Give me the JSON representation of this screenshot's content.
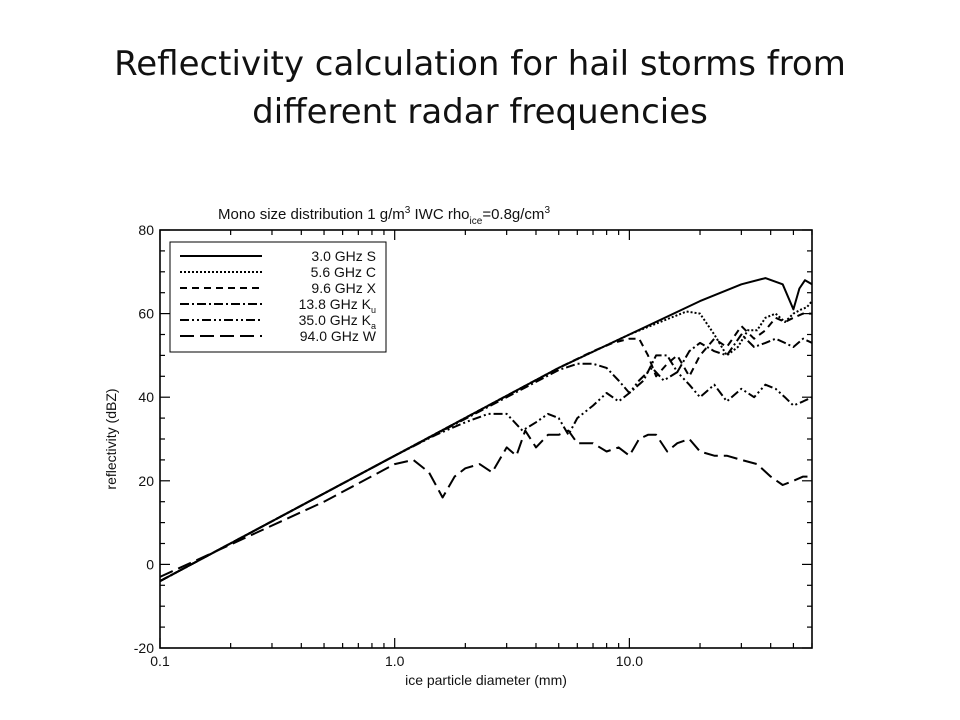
{
  "slide": {
    "title_line1": "Reflectivity calculation for hail storms from",
    "title_line2": "different radar frequencies"
  },
  "chart_data": {
    "type": "line",
    "title_parts": {
      "a": "Mono size distribution    1 g/m",
      "sup3a": "3",
      "b": " IWC    rho",
      "sub_ice": "ice",
      "c": "=0.8g/cm",
      "sup3b": "3"
    },
    "xlabel": "ice particle diameter (mm)",
    "ylabel": "reflectivity (dBZ)",
    "x_scale": "log",
    "xlim": [
      0.1,
      60
    ],
    "ylim": [
      -20,
      80
    ],
    "x_tick_labels": [
      "0.1",
      "1.0",
      "10.0"
    ],
    "x_tick_values": [
      0.1,
      1.0,
      10.0
    ],
    "y_ticks": [
      -20,
      0,
      20,
      40,
      60,
      80
    ],
    "grid": false,
    "legend_position": "top-left",
    "series": [
      {
        "name": "3.0 GHz S",
        "style": "solid",
        "x": [
          0.1,
          1.0,
          5.0,
          10.0,
          20.0,
          30.0,
          38.0,
          45.0,
          50.0,
          53.0,
          56.0,
          60.0
        ],
        "y": [
          -4,
          26,
          47,
          55,
          63,
          67,
          68.5,
          67,
          61,
          66,
          68,
          67
        ]
      },
      {
        "name": "5.6 GHz C",
        "style": "dotted",
        "x": [
          0.1,
          1.0,
          5.0,
          10.0,
          15.0,
          17.5,
          20.0,
          23.0,
          26.0,
          29.0,
          32.0,
          35.0,
          38.0,
          42.0,
          46.0,
          50.0,
          54.0,
          57.0,
          60.0
        ],
        "y": [
          -4,
          26,
          47,
          55,
          59,
          60.5,
          60,
          55,
          50,
          52,
          56,
          56,
          59,
          60,
          58,
          60,
          61,
          61.5,
          63
        ]
      },
      {
        "name": "9.6 GHz X",
        "style": "dashed",
        "x": [
          0.1,
          1.0,
          5.0,
          7.0,
          8.5,
          10.0,
          11.0,
          12.0,
          13.0,
          14.5,
          16.0,
          18.0,
          20.0,
          23.0,
          26.0,
          30.0,
          34.0,
          38.0,
          42.0,
          46.0,
          50.0,
          55.0,
          60.0
        ],
        "y": [
          -4,
          26,
          47,
          51,
          53,
          54,
          54,
          50,
          45,
          48,
          50,
          45,
          50,
          54,
          52,
          57,
          54,
          56,
          59,
          58,
          59,
          60,
          60
        ]
      },
      {
        "name": "13.8 GHz K",
        "name_sub": "u",
        "style": "dashdot",
        "x": [
          0.1,
          1.0,
          3.0,
          5.0,
          6.0,
          7.0,
          8.0,
          9.0,
          10.0,
          11.5,
          13.0,
          14.5,
          16.0,
          18.0,
          20.0,
          23.0,
          26.0,
          30.0,
          34.0,
          38.0,
          42.0,
          46.0,
          50.0,
          55.0,
          60.0
        ],
        "y": [
          -4,
          26,
          40,
          46.5,
          48,
          48,
          47,
          44,
          41,
          44,
          50,
          50,
          46,
          51,
          53,
          51,
          50,
          55,
          52,
          53,
          54,
          53,
          52,
          54,
          53
        ]
      },
      {
        "name": "35.0 GHz K",
        "name_sub": "a",
        "style": "dashdotdot",
        "x": [
          0.1,
          1.0,
          1.5,
          2.0,
          2.5,
          3.0,
          3.5,
          4.0,
          4.5,
          5.0,
          5.5,
          6.0,
          7.0,
          8.0,
          9.0,
          10.0,
          11.0,
          12.5,
          14.0,
          16.0,
          18.0,
          20.0,
          23.0,
          26.0,
          30.0,
          34.0,
          38.0,
          42.0,
          46.0,
          50.0,
          55.0,
          60.0
        ],
        "y": [
          -4,
          26,
          31,
          34,
          36,
          36,
          32,
          34,
          36,
          35,
          31,
          35,
          38,
          41,
          39,
          41,
          44,
          47,
          44,
          46,
          43,
          40,
          43,
          39,
          42,
          40,
          43,
          42,
          40,
          38,
          39,
          40
        ]
      },
      {
        "name": "94.0 GHz W",
        "style": "longdash",
        "x": [
          0.1,
          0.5,
          1.0,
          1.2,
          1.4,
          1.6,
          1.8,
          2.0,
          2.3,
          2.6,
          3.0,
          3.3,
          3.6,
          4.0,
          4.5,
          5.0,
          5.5,
          6.0,
          7.0,
          8.0,
          9.0,
          10.0,
          11.0,
          12.0,
          13.0,
          14.5,
          16.0,
          18.0,
          20.0,
          23.0,
          26.0,
          30.0,
          35.0,
          40.0,
          45.0,
          50.0,
          55.0,
          60.0
        ],
        "y": [
          -3,
          15,
          24,
          25,
          22,
          16,
          21,
          23,
          24,
          22,
          28,
          26,
          32,
          28,
          31,
          31,
          32,
          29,
          29,
          27,
          28,
          26,
          30,
          31,
          31,
          27,
          29,
          30,
          27,
          26,
          26,
          25,
          24,
          21,
          19,
          20,
          21,
          21
        ]
      }
    ]
  }
}
